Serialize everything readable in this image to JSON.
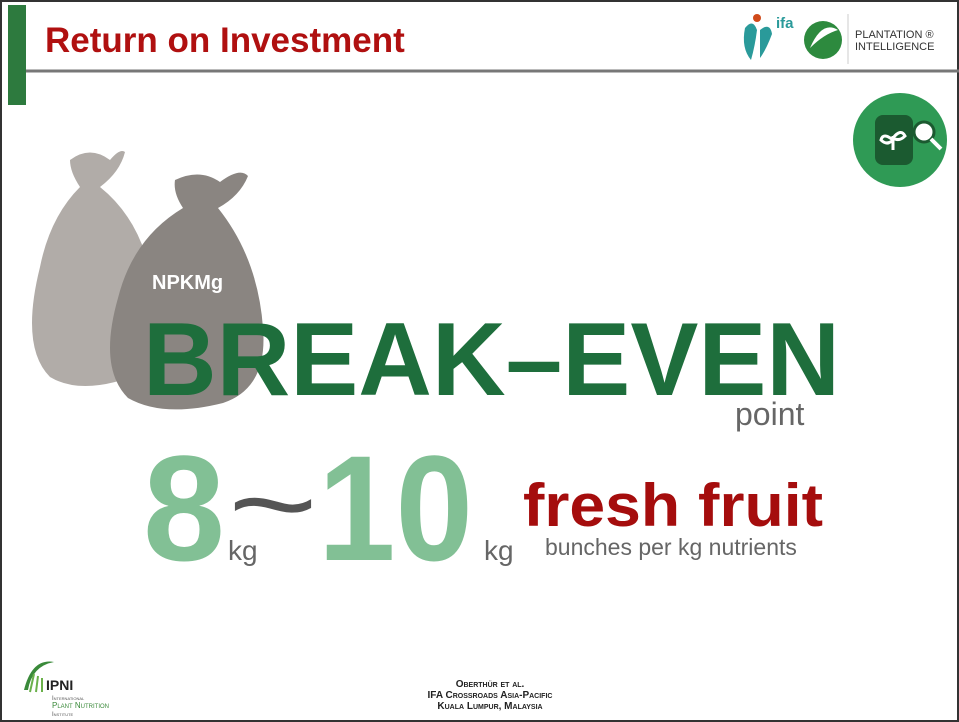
{
  "header": {
    "title": "Return on Investment",
    "logos": [
      "ifa",
      "PLANTATION ®",
      "INTELLIGENCE"
    ]
  },
  "body": {
    "sack_label": "NPKMg",
    "headline": "BREAK–EVEN",
    "headline_sub": "point",
    "range": [
      "8",
      "kg",
      "~",
      "10",
      "kg"
    ],
    "result": "fresh fruit",
    "result_sub": "bunches per kg nutrients"
  },
  "footer": {
    "logo": [
      "IPNI",
      "International",
      "Plant Nutrition",
      "Institute"
    ],
    "credits": [
      "Oberthür et al.",
      "IFA Crossroads Asia-Pacific",
      "Kuala Lumpur, Malaysia"
    ]
  }
}
